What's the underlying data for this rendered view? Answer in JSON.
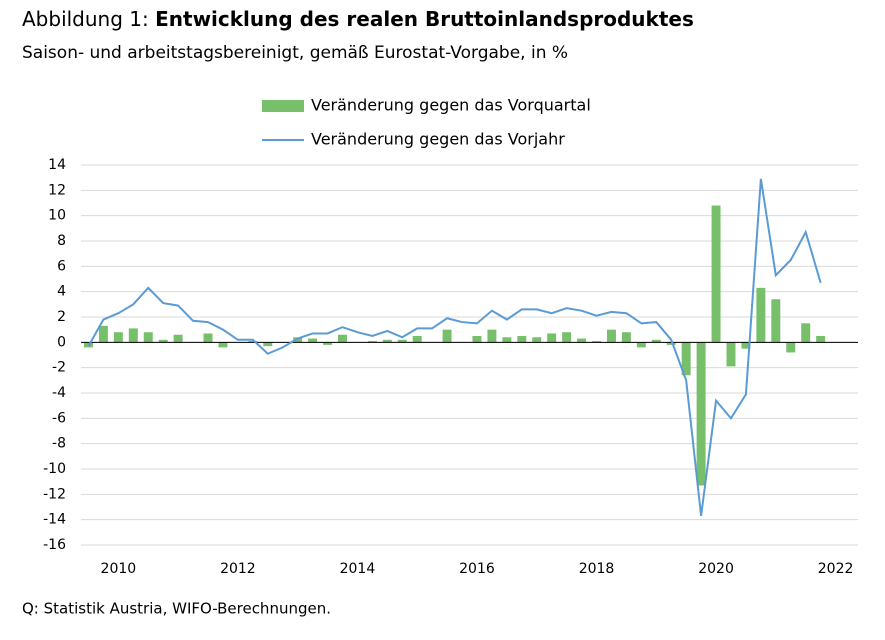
{
  "chart_data": {
    "type": "bar_line",
    "figure_label": "Abbildung 1:",
    "title": "Entwicklung des realen Bruttoinlandsproduktes",
    "subtitle": "Saison- und arbeitstagsbereinigt, gemäß Eurostat-Vorgabe, in %",
    "source": "Q: Statistik Austria, WIFO-Berechnungen.",
    "categories": [
      null,
      null,
      "2010",
      null,
      null,
      null,
      null,
      null,
      null,
      null,
      "2012",
      null,
      null,
      null,
      null,
      null,
      null,
      null,
      "2014",
      null,
      null,
      null,
      null,
      null,
      null,
      null,
      "2016",
      null,
      null,
      null,
      null,
      null,
      null,
      null,
      "2018",
      null,
      null,
      null,
      null,
      null,
      null,
      null,
      "2020",
      null,
      null,
      null,
      null,
      null,
      null,
      null,
      "2022",
      null
    ],
    "series": [
      {
        "name": "Veränderung gegen das Vorquartal",
        "kind": "bar",
        "color": "#77bf6b",
        "values": [
          -0.4,
          1.3,
          0.8,
          1.1,
          0.8,
          0.2,
          0.6,
          0.0,
          0.7,
          -0.4,
          0.0,
          0.1,
          -0.3,
          0.0,
          0.4,
          0.3,
          -0.2,
          0.6,
          0.0,
          0.1,
          0.2,
          0.2,
          0.5,
          0.0,
          1.0,
          0.0,
          0.5,
          1.0,
          0.4,
          0.5,
          0.4,
          0.7,
          0.8,
          0.3,
          0.1,
          1.0,
          0.8,
          -0.4,
          0.2,
          -0.2,
          -2.6,
          -11.3,
          10.8,
          -1.9,
          -0.5,
          4.3,
          3.4,
          -0.8,
          1.5,
          0.5,
          null,
          null
        ]
      },
      {
        "name": "Veränderung gegen das Vorjahr",
        "kind": "line",
        "color": "#5b9bd5",
        "values": [
          -0.3,
          1.8,
          2.3,
          3.0,
          4.3,
          3.1,
          2.9,
          1.7,
          1.6,
          1.0,
          0.2,
          0.2,
          -0.9,
          -0.4,
          0.3,
          0.7,
          0.7,
          1.2,
          0.8,
          0.5,
          0.9,
          0.4,
          1.1,
          1.1,
          1.9,
          1.6,
          1.5,
          2.5,
          1.8,
          2.6,
          2.6,
          2.3,
          2.7,
          2.5,
          2.1,
          2.4,
          2.3,
          1.5,
          1.6,
          0.2,
          -3.0,
          -13.7,
          -4.6,
          -6.0,
          -4.1,
          12.9,
          5.3,
          6.5,
          8.7,
          4.7,
          null,
          null
        ]
      }
    ],
    "ylim": [
      -16,
      14
    ],
    "yticks": [
      -16,
      -14,
      -12,
      -10,
      -8,
      -6,
      -4,
      -2,
      0,
      2,
      4,
      6,
      8,
      10,
      12,
      14
    ],
    "grid": true,
    "legend": "top"
  }
}
